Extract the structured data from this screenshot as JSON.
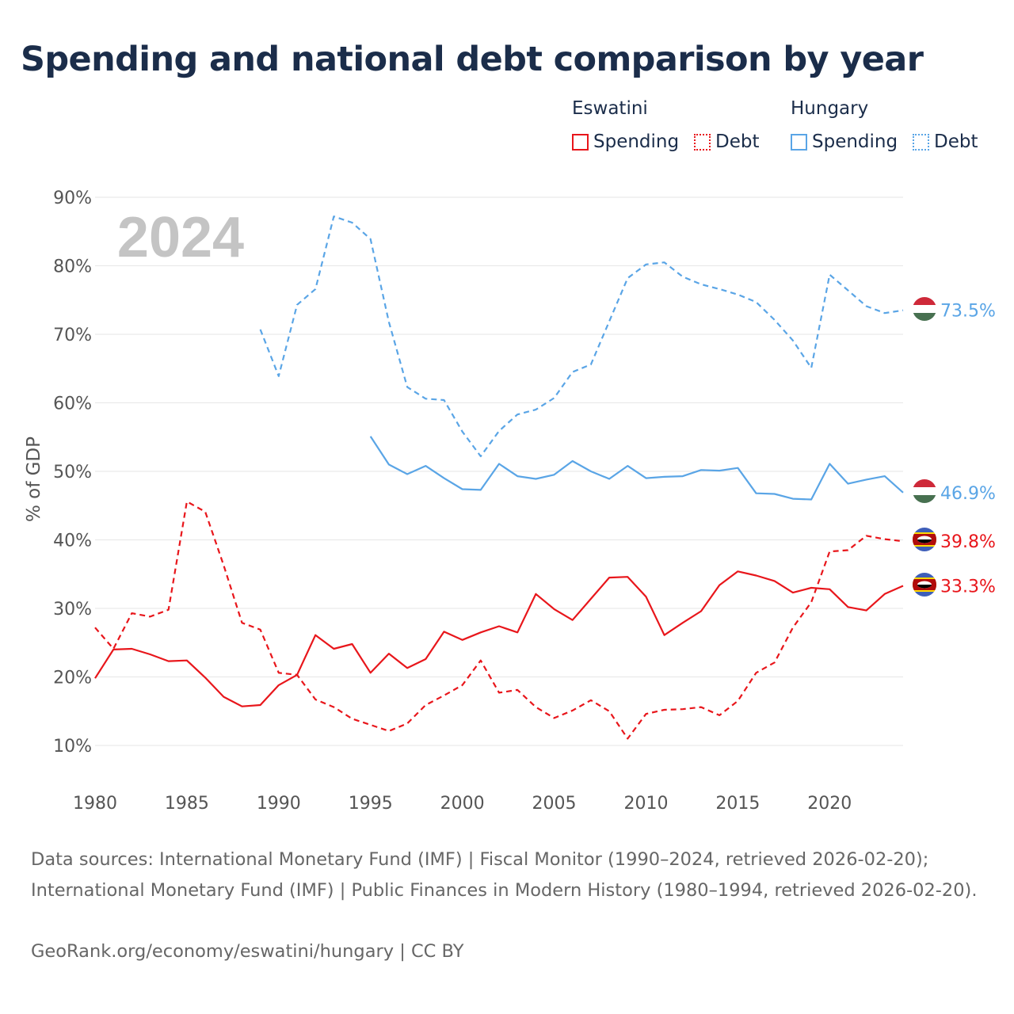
{
  "title": "Spending and national debt comparison by year",
  "legend": {
    "groups": [
      {
        "name": "Eswatini",
        "color": "#e8161b",
        "items": [
          "Spending",
          "Debt"
        ]
      },
      {
        "name": "Hungary",
        "color": "#5aa5e6",
        "items": [
          "Spending",
          "Debt"
        ]
      }
    ]
  },
  "year_watermark": "2024",
  "chart_data": {
    "type": "line",
    "title": "Spending and national debt comparison by year",
    "xlabel": "",
    "ylabel": "% of GDP",
    "xlim": [
      1980,
      2024
    ],
    "ylim": [
      5,
      93
    ],
    "yticks": [
      10,
      20,
      30,
      40,
      50,
      60,
      70,
      80,
      90
    ],
    "ytick_labels": [
      "10%",
      "20%",
      "30%",
      "40%",
      "50%",
      "60%",
      "70%",
      "80%",
      "90%"
    ],
    "xticks": [
      1980,
      1985,
      1990,
      1995,
      2000,
      2005,
      2010,
      2015,
      2020
    ],
    "xtick_labels": [
      "1980",
      "1985",
      "1990",
      "1995",
      "2000",
      "2005",
      "2010",
      "2015",
      "2020"
    ],
    "grid": true,
    "series": [
      {
        "name": "Eswatini Spending",
        "country": "Eswatini",
        "metric": "Spending",
        "color": "#e8161b",
        "style": "solid",
        "end_label": "33.3%",
        "x": [
          1980,
          1981,
          1982,
          1983,
          1984,
          1985,
          1986,
          1987,
          1988,
          1989,
          1990,
          1991,
          1992,
          1993,
          1994,
          1995,
          1996,
          1997,
          1998,
          1999,
          2000,
          2001,
          2002,
          2003,
          2004,
          2005,
          2006,
          2007,
          2008,
          2009,
          2010,
          2011,
          2012,
          2013,
          2014,
          2015,
          2016,
          2017,
          2018,
          2019,
          2020,
          2021,
          2022,
          2023,
          2024
        ],
        "y": [
          19.8,
          24.0,
          24.1,
          23.3,
          22.3,
          22.4,
          19.9,
          17.1,
          15.7,
          15.9,
          18.8,
          20.3,
          26.1,
          24.1,
          24.8,
          20.6,
          23.4,
          21.3,
          22.6,
          26.6,
          25.4,
          26.5,
          27.4,
          26.5,
          32.1,
          29.9,
          28.3,
          31.4,
          34.5,
          34.6,
          31.7,
          26.1,
          27.9,
          29.6,
          33.4,
          35.4,
          34.8,
          34.0,
          32.3,
          33.0,
          32.8,
          30.2,
          29.7,
          32.1,
          33.3
        ]
      },
      {
        "name": "Eswatini Debt",
        "country": "Eswatini",
        "metric": "Debt",
        "color": "#e8161b",
        "style": "dashed",
        "end_label": "39.8%",
        "x": [
          1980,
          1981,
          1982,
          1983,
          1984,
          1985,
          1986,
          1987,
          1988,
          1989,
          1990,
          1991,
          1992,
          1993,
          1994,
          1995,
          1996,
          1997,
          1998,
          1999,
          2000,
          2001,
          2002,
          2003,
          2004,
          2005,
          2006,
          2007,
          2008,
          2009,
          2010,
          2011,
          2012,
          2013,
          2014,
          2015,
          2016,
          2017,
          2018,
          2019,
          2020,
          2021,
          2022,
          2023,
          2024
        ],
        "y": [
          27.2,
          24.1,
          29.3,
          28.8,
          29.8,
          45.6,
          44.1,
          36.3,
          27.9,
          26.9,
          20.6,
          20.3,
          16.7,
          15.6,
          13.9,
          13.0,
          12.1,
          13.2,
          15.9,
          17.3,
          18.8,
          22.4,
          17.7,
          18.1,
          15.6,
          14.0,
          15.1,
          16.6,
          15.0,
          11.0,
          14.6,
          15.2,
          15.3,
          15.6,
          14.4,
          16.5,
          20.6,
          22.1,
          27.2,
          30.9,
          38.3,
          38.5,
          40.6,
          40.1,
          39.8
        ]
      },
      {
        "name": "Hungary Spending",
        "country": "Hungary",
        "metric": "Spending",
        "color": "#5aa5e6",
        "style": "solid",
        "end_label": "46.9%",
        "x": [
          1995,
          1996,
          1997,
          1998,
          1999,
          2000,
          2001,
          2002,
          2003,
          2004,
          2005,
          2006,
          2007,
          2008,
          2009,
          2010,
          2011,
          2012,
          2013,
          2014,
          2015,
          2016,
          2017,
          2018,
          2019,
          2020,
          2021,
          2022,
          2023,
          2024
        ],
        "y": [
          55.1,
          51.0,
          49.6,
          50.8,
          49.0,
          47.4,
          47.3,
          51.1,
          49.3,
          48.9,
          49.5,
          51.5,
          50.0,
          48.9,
          50.8,
          49.0,
          49.2,
          49.3,
          50.2,
          50.1,
          50.5,
          46.8,
          46.7,
          46.0,
          45.9,
          51.1,
          48.2,
          48.8,
          49.3,
          46.9
        ]
      },
      {
        "name": "Hungary Debt",
        "country": "Hungary",
        "metric": "Debt",
        "color": "#5aa5e6",
        "style": "dashed",
        "end_label": "73.5%",
        "x": [
          1989,
          1990,
          1991,
          1992,
          1993,
          1994,
          1995,
          1996,
          1997,
          1998,
          1999,
          2000,
          2001,
          2002,
          2003,
          2004,
          2005,
          2006,
          2007,
          2008,
          2009,
          2010,
          2011,
          2012,
          2013,
          2014,
          2015,
          2016,
          2017,
          2018,
          2019,
          2020,
          2021,
          2022,
          2023,
          2024
        ],
        "y": [
          70.7,
          63.9,
          74.3,
          76.6,
          87.2,
          86.3,
          83.9,
          71.8,
          62.3,
          60.6,
          60.4,
          55.8,
          52.2,
          55.9,
          58.3,
          59.0,
          60.7,
          64.5,
          65.6,
          71.9,
          78.2,
          80.2,
          80.5,
          78.4,
          77.3,
          76.6,
          75.8,
          74.7,
          72.1,
          69.1,
          65.1,
          78.7,
          76.4,
          74.1,
          73.1,
          73.5
        ]
      }
    ]
  },
  "footer": {
    "sources": "Data sources: International Monetary Fund (IMF) | Fiscal Monitor (1990–2024, retrieved 2026-02-20); International Monetary Fund (IMF) | Public Finances in Modern History (1980–1994, retrieved 2026-02-20).",
    "credit": "GeoRank.org/economy/eswatini/hungary | CC BY"
  }
}
